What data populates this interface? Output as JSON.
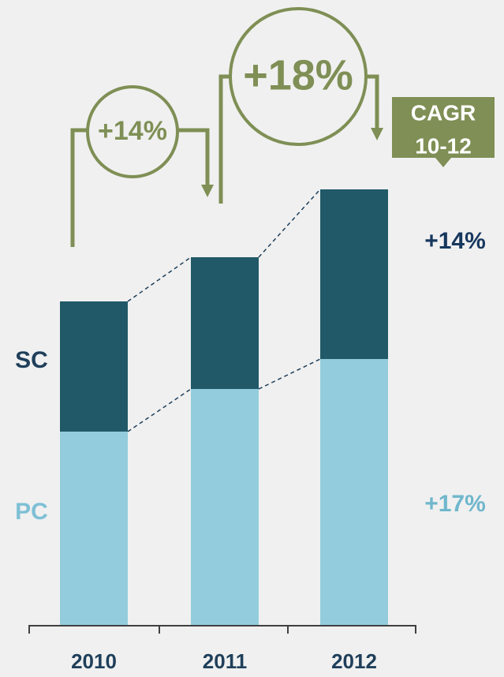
{
  "chart_data": {
    "type": "bar",
    "stacked": true,
    "categories": [
      "2010",
      "2011",
      "2012"
    ],
    "series": [
      {
        "name": "PC",
        "color": "#93cddd",
        "values": [
          246,
          300,
          338
        ]
      },
      {
        "name": "SC",
        "color": "#215968",
        "values": [
          165,
          167,
          215
        ]
      }
    ],
    "ylim": [
      0,
      600
    ],
    "annotations": {
      "growth": [
        "+14%",
        "+18%"
      ],
      "cagr_label": [
        "CAGR",
        "10-12"
      ],
      "series_cagr": [
        "+17%",
        "+14%"
      ]
    }
  }
}
